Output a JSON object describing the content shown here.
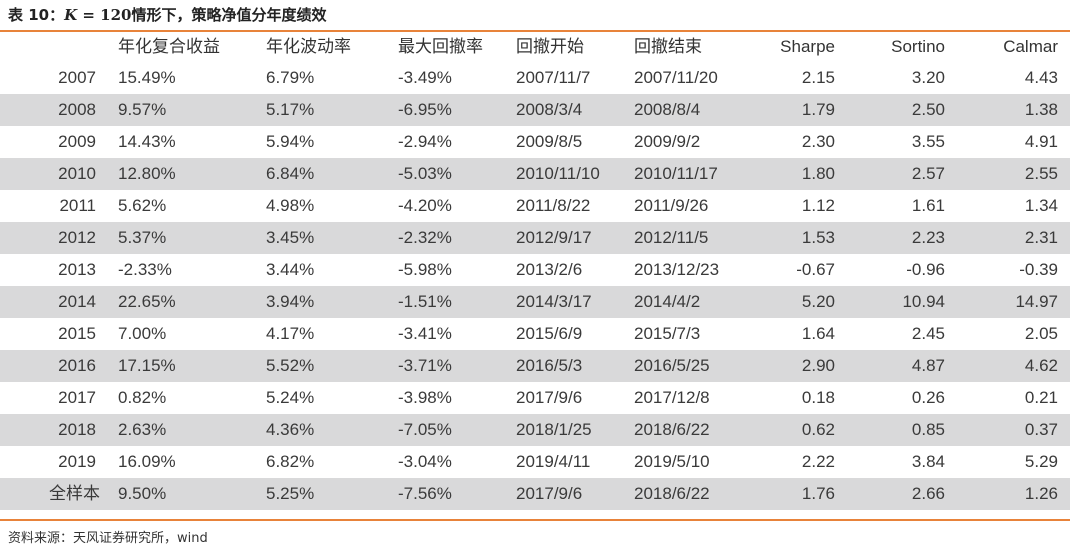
{
  "title": {
    "prefix": "表 10：",
    "math_var": "K",
    "math_rest": " = 120",
    "suffix": "情形下，策略净值分年度绩效"
  },
  "table": {
    "columns": [
      "",
      "年化复合收益",
      "年化波动率",
      "最大回撤率",
      "回撤开始",
      "回撤结束",
      "Sharpe",
      "Sortino",
      "Calmar"
    ],
    "rows": [
      [
        "2007",
        "15.49%",
        "6.79%",
        "-3.49%",
        "2007/11/7",
        "2007/11/20",
        "2.15",
        "3.20",
        "4.43"
      ],
      [
        "2008",
        "9.57%",
        "5.17%",
        "-6.95%",
        "2008/3/4",
        "2008/8/4",
        "1.79",
        "2.50",
        "1.38"
      ],
      [
        "2009",
        "14.43%",
        "5.94%",
        "-2.94%",
        "2009/8/5",
        "2009/9/2",
        "2.30",
        "3.55",
        "4.91"
      ],
      [
        "2010",
        "12.80%",
        "6.84%",
        "-5.03%",
        "2010/11/10",
        "2010/11/17",
        "1.80",
        "2.57",
        "2.55"
      ],
      [
        "2011",
        "5.62%",
        "4.98%",
        "-4.20%",
        "2011/8/22",
        "2011/9/26",
        "1.12",
        "1.61",
        "1.34"
      ],
      [
        "2012",
        "5.37%",
        "3.45%",
        "-2.32%",
        "2012/9/17",
        "2012/11/5",
        "1.53",
        "2.23",
        "2.31"
      ],
      [
        "2013",
        "-2.33%",
        "3.44%",
        "-5.98%",
        "2013/2/6",
        "2013/12/23",
        "-0.67",
        "-0.96",
        "-0.39"
      ],
      [
        "2014",
        "22.65%",
        "3.94%",
        "-1.51%",
        "2014/3/17",
        "2014/4/2",
        "5.20",
        "10.94",
        "14.97"
      ],
      [
        "2015",
        "7.00%",
        "4.17%",
        "-3.41%",
        "2015/6/9",
        "2015/7/3",
        "1.64",
        "2.45",
        "2.05"
      ],
      [
        "2016",
        "17.15%",
        "5.52%",
        "-3.71%",
        "2016/5/3",
        "2016/5/25",
        "2.90",
        "4.87",
        "4.62"
      ],
      [
        "2017",
        "0.82%",
        "5.24%",
        "-3.98%",
        "2017/9/6",
        "2017/12/8",
        "0.18",
        "0.26",
        "0.21"
      ],
      [
        "2018",
        "2.63%",
        "4.36%",
        "-7.05%",
        "2018/1/25",
        "2018/6/22",
        "0.62",
        "0.85",
        "0.37"
      ],
      [
        "2019",
        "16.09%",
        "6.82%",
        "-3.04%",
        "2019/4/11",
        "2019/5/10",
        "2.22",
        "3.84",
        "5.29"
      ],
      [
        "全样本",
        "9.50%",
        "5.25%",
        "-7.56%",
        "2017/9/6",
        "2018/6/22",
        "1.76",
        "2.66",
        "1.26"
      ]
    ]
  },
  "source": "资料来源：天风证券研究所，wind",
  "colors": {
    "accent_rule": "#e8833a",
    "row_shade": "#d9d9da"
  }
}
